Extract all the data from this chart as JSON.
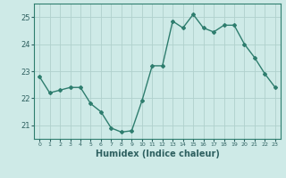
{
  "x": [
    0,
    1,
    2,
    3,
    4,
    5,
    6,
    7,
    8,
    9,
    10,
    11,
    12,
    13,
    14,
    15,
    16,
    17,
    18,
    19,
    20,
    21,
    22,
    23
  ],
  "y": [
    22.8,
    22.2,
    22.3,
    22.4,
    22.4,
    21.8,
    21.5,
    20.9,
    20.75,
    20.8,
    21.9,
    23.2,
    23.2,
    24.85,
    24.6,
    25.1,
    24.6,
    24.45,
    24.7,
    24.7,
    24.0,
    23.5,
    22.9,
    22.4
  ],
  "line_color": "#2e7d6e",
  "marker": "D",
  "marker_size": 2.0,
  "bg_color": "#ceeae7",
  "grid_color": "#b0d0cc",
  "axis_color": "#2e7d6e",
  "tick_color": "#2e6060",
  "xlabel": "Humidex (Indice chaleur)",
  "xlabel_fontsize": 7,
  "ytick_labels": [
    "21",
    "22",
    "23",
    "24",
    "25"
  ],
  "yticks": [
    21,
    22,
    23,
    24,
    25
  ],
  "xticks": [
    0,
    1,
    2,
    3,
    4,
    5,
    6,
    7,
    8,
    9,
    10,
    11,
    12,
    13,
    14,
    15,
    16,
    17,
    18,
    19,
    20,
    21,
    22,
    23
  ],
  "ylim": [
    20.5,
    25.5
  ],
  "xlim": [
    -0.5,
    23.5
  ],
  "linewidth": 1.0
}
